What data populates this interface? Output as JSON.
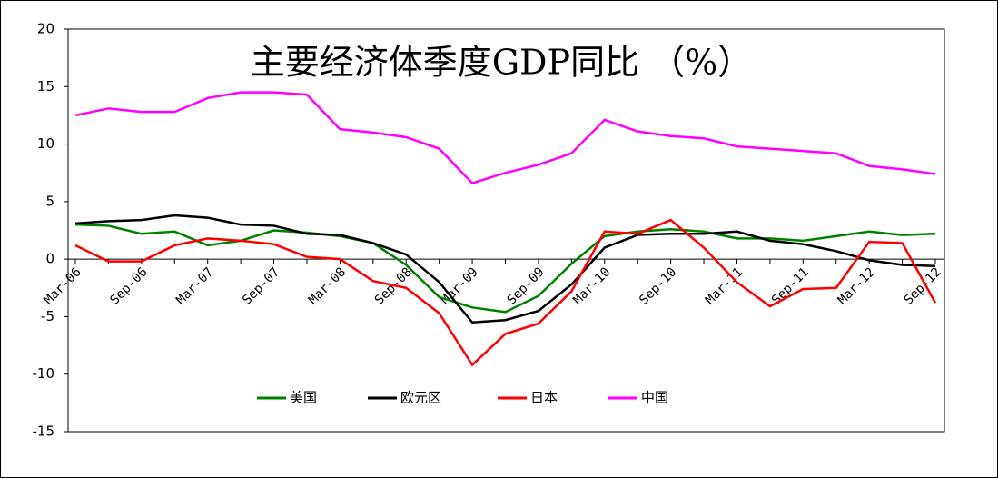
{
  "chart_data": {
    "type": "line",
    "title": "主要经济体季度GDP同比 （%）",
    "categories": [
      "Mar-06",
      null,
      "Sep-06",
      null,
      "Mar-07",
      null,
      "Sep-07",
      null,
      "Mar-08",
      null,
      "Sep-08",
      null,
      "Mar-09",
      null,
      "Sep-09",
      null,
      "Mar-10",
      null,
      "Sep-10",
      null,
      "Mar-11",
      null,
      "Sep-11",
      null,
      "Mar-12",
      null,
      "Sep-12"
    ],
    "series": [
      {
        "name": "美国",
        "color": "#008000",
        "values": [
          3.0,
          2.9,
          2.2,
          2.4,
          1.2,
          1.6,
          2.5,
          2.3,
          2.0,
          1.4,
          -0.5,
          -3.3,
          -4.2,
          -4.6,
          -3.2,
          -0.4,
          2.0,
          2.4,
          2.6,
          2.4,
          1.8,
          1.8,
          1.6,
          2.0,
          2.4,
          2.1,
          2.2
        ]
      },
      {
        "name": "欧元区",
        "color": "#000000",
        "values": [
          3.1,
          3.3,
          3.4,
          3.8,
          3.6,
          3.0,
          2.9,
          2.2,
          2.1,
          1.4,
          0.4,
          -2.0,
          -5.5,
          -5.3,
          -4.5,
          -2.2,
          1.0,
          2.1,
          2.2,
          2.2,
          2.4,
          1.6,
          1.3,
          0.7,
          -0.1,
          -0.5,
          -0.6
        ]
      },
      {
        "name": "日本",
        "color": "#ff0000",
        "values": [
          1.2,
          -0.2,
          -0.2,
          1.2,
          1.8,
          1.6,
          1.3,
          0.2,
          0.0,
          -1.9,
          -2.5,
          -4.7,
          -9.2,
          -6.5,
          -5.6,
          -2.8,
          2.4,
          2.2,
          3.4,
          1.0,
          -2.0,
          -4.1,
          -2.6,
          -2.5,
          1.5,
          1.4,
          -3.8
        ]
      },
      {
        "name": "中国",
        "color": "#ff00ff",
        "values": [
          12.5,
          13.1,
          12.8,
          12.8,
          14.0,
          14.5,
          14.5,
          14.3,
          11.3,
          11.0,
          10.6,
          9.6,
          6.6,
          7.5,
          8.2,
          9.2,
          12.1,
          11.1,
          10.7,
          10.5,
          9.8,
          9.6,
          9.4,
          9.2,
          8.1,
          7.8,
          7.4
        ]
      }
    ],
    "ylim": [
      -15,
      20
    ],
    "yticks": [
      -15,
      -10,
      -5,
      0,
      5,
      10,
      15,
      20
    ],
    "grid": false,
    "legend": "bottom"
  }
}
